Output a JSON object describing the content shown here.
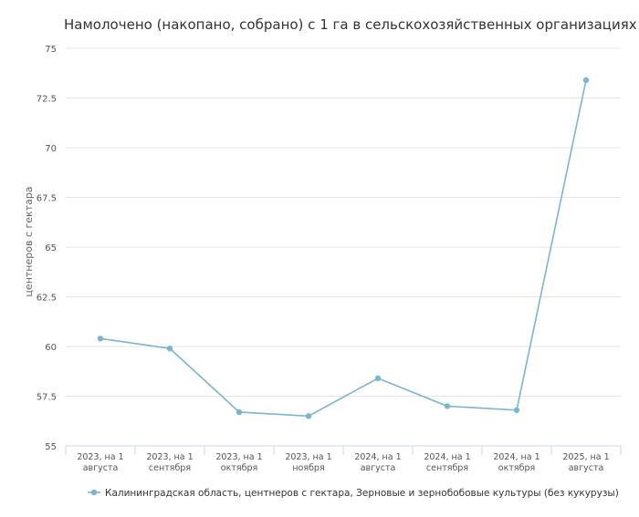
{
  "chart_data": {
    "type": "line",
    "title": "Намолочено (накопано, собрано) с 1 га в сельскохозяйственных организациях",
    "y_label": "центнеров с гектара",
    "categories": [
      [
        "2023, на 1",
        "августа"
      ],
      [
        "2023, на 1",
        "сентября"
      ],
      [
        "2023, на 1",
        "октября"
      ],
      [
        "2023, на 1",
        "ноября"
      ],
      [
        "2024, на 1",
        "августа"
      ],
      [
        "2024, на 1",
        "сентября"
      ],
      [
        "2024, на 1",
        "октября"
      ],
      [
        "2025, на 1",
        "августа"
      ]
    ],
    "series": [
      {
        "name": "Калининградская область, центнеров с гектара, Зерновые и зернобобовые культуры (без кукурузы)",
        "color": "#7cb5d2",
        "values": [
          60.4,
          59.9,
          56.7,
          56.5,
          58.4,
          57.0,
          56.8,
          73.4
        ]
      }
    ],
    "ylim": [
      55,
      75
    ],
    "yticks": [
      55,
      57.5,
      60,
      62.5,
      65,
      67.5,
      70,
      72.5,
      75
    ],
    "grid": true
  }
}
